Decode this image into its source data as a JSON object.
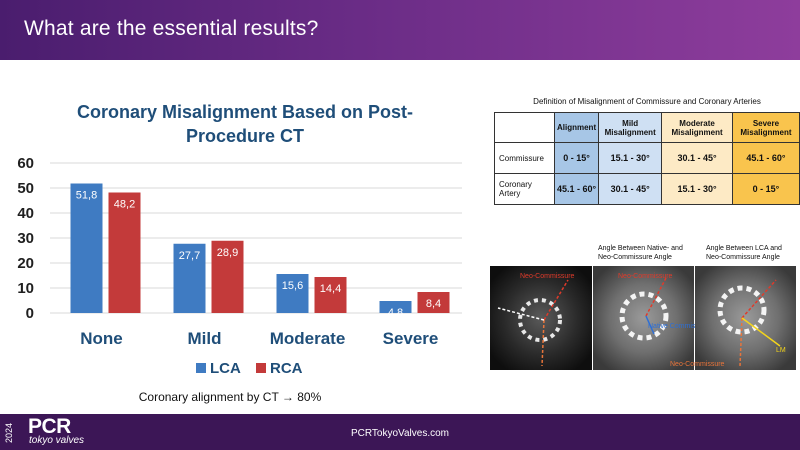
{
  "header": {
    "title": "What are the essential results?"
  },
  "chart": {
    "title_line1": "Coronary Misalignment Based on Post-",
    "title_line2": "Procedure CT",
    "legend": [
      "LCA",
      "RCA"
    ]
  },
  "chart_data": {
    "type": "bar",
    "title": "Coronary Misalignment Based on Post-Procedure CT",
    "categories": [
      "None",
      "Mild",
      "Moderate",
      "Severe"
    ],
    "series": [
      {
        "name": "LCA",
        "values": [
          51.8,
          27.7,
          15.6,
          4.8
        ],
        "labels": [
          "51,8",
          "27,7",
          "15,6",
          "4,8"
        ]
      },
      {
        "name": "RCA",
        "values": [
          48.2,
          28.9,
          14.4,
          8.4
        ],
        "labels": [
          "48,2",
          "28,9",
          "14,4",
          "8,4"
        ]
      }
    ],
    "ylim": [
      0,
      60
    ],
    "yticks": [
      "0",
      "10",
      "20",
      "30",
      "40",
      "50",
      "60"
    ],
    "grid": true,
    "legend": "bottom",
    "colors": {
      "LCA": "#3f7bc2",
      "RCA": "#c33a3a"
    }
  },
  "caption": "Coronary alignment by CT → 80%",
  "table": {
    "title": "Definition of Misalignment of Commissure and Coronary Arteries",
    "headers": [
      "",
      "Alignment",
      "Mild Misalignment",
      "Moderate Misalignment",
      "Severe Misalignment"
    ],
    "rows": [
      {
        "label": "Commissure",
        "cells": [
          "0 - 15°",
          "15.1 - 30°",
          "30.1 - 45°",
          "45.1 - 60°"
        ]
      },
      {
        "label": "Coronary Artery",
        "cells": [
          "45.1 - 60°",
          "30.1 - 45°",
          "15.1 - 30°",
          "0 - 15°"
        ]
      }
    ]
  },
  "images": {
    "caption_middle": "Angle Between Native- and Neo-Commissure Angle",
    "caption_right": "Angle Between LCA and Neo-Commissure Angle",
    "label_neo1": "Neo-Commissure",
    "label_neo2": "Neo-Commissure",
    "label_native": "Native Commissure",
    "label_neo3": "Neo-Commissure",
    "label_lm": "LM"
  },
  "footer": {
    "year": "2024",
    "logo": "PCR",
    "logo_sub": "tokyo valves",
    "url": "PCRTokyoValves.com"
  },
  "colors": {
    "header": "#5b2278",
    "footer": "#3c1656",
    "title": "#1f4e79"
  }
}
